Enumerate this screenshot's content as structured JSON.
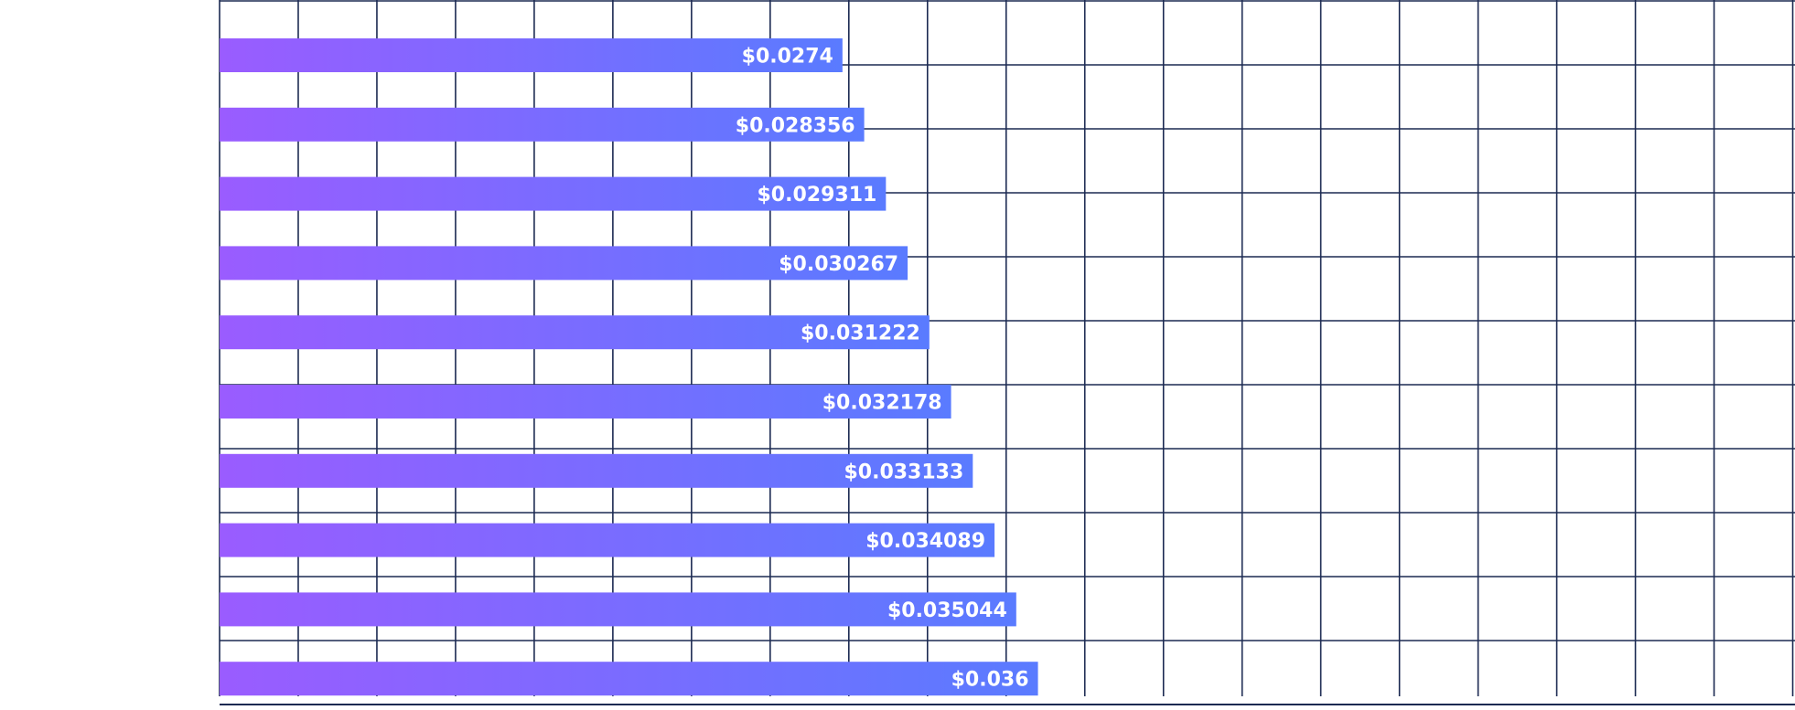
{
  "chart_data": {
    "type": "bar",
    "orientation": "horizontal",
    "title": "",
    "xlabel": "",
    "ylabel": "",
    "grid": true,
    "legend": "none",
    "xlim": [
      0,
      0.0693
    ],
    "x_grid_step": 0.00346,
    "values": [
      0.0274,
      0.028356,
      0.029311,
      0.030267,
      0.031222,
      0.032178,
      0.033133,
      0.034089,
      0.035044,
      0.036
    ],
    "labels": [
      "$0.0274",
      "$0.028356",
      "$0.029311",
      "$0.030267",
      "$0.031222",
      "$0.032178",
      "$0.033133",
      "$0.034089",
      "$0.035044",
      "$0.036"
    ]
  },
  "colors": {
    "bar_start": "#9a5cff",
    "bar_end": "#5a7bff",
    "grid": "#1c2a52",
    "label": "#ffffff",
    "background": "#ffffff"
  }
}
